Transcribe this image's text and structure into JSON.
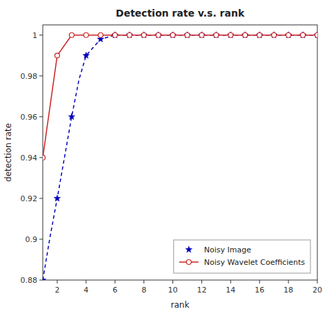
{
  "chart_data": {
    "type": "line",
    "title": "Detection rate v.s. rank",
    "x_label": "rank",
    "y_label": "detection rate",
    "xlim": [
      1,
      20
    ],
    "ylim": [
      0.88,
      1.005
    ],
    "xticks": [
      2,
      4,
      6,
      8,
      10,
      12,
      14,
      16,
      18,
      20
    ],
    "yticks": [
      0.88,
      0.9,
      0.92,
      0.94,
      0.96,
      0.98,
      1
    ],
    "grid": false,
    "legend": "lower right",
    "series": [
      {
        "color": "#0000bb",
        "line_style": "dashed",
        "marker": "none",
        "x": [
          1,
          1.5,
          2,
          2.5,
          3,
          3.5,
          4,
          5,
          6,
          7,
          8,
          9,
          10,
          11,
          12,
          13,
          14,
          15,
          16,
          17,
          18,
          19,
          20
        ],
        "values": [
          0.88,
          0.901,
          0.92,
          0.94,
          0.96,
          0.978,
          0.99,
          0.998,
          1.0,
          1.0,
          1.0,
          1.0,
          1.0,
          1.0,
          1.0,
          1.0,
          1.0,
          1.0,
          1.0,
          1.0,
          1.0,
          1.0,
          1.0
        ]
      },
      {
        "name": "Noisy Image",
        "color": "#0000bb",
        "line_style": "none",
        "marker": "star",
        "x": [
          1,
          2,
          3,
          4,
          5,
          6,
          7,
          8,
          9,
          10,
          11,
          12,
          13,
          14,
          15,
          16,
          17,
          18,
          19,
          20
        ],
        "values": [
          0.88,
          0.92,
          0.96,
          0.99,
          0.998,
          1.0,
          1.0,
          1.0,
          1.0,
          1.0,
          1.0,
          1.0,
          1.0,
          1.0,
          1.0,
          1.0,
          1.0,
          1.0,
          1.0,
          1.0
        ]
      },
      {
        "name": "Noisy Wavelet Coefficients",
        "color": "#cc2222",
        "line_style": "solid",
        "marker": "circle",
        "x": [
          1,
          2,
          3,
          4,
          5,
          6,
          7,
          8,
          9,
          10,
          11,
          12,
          13,
          14,
          15,
          16,
          17,
          18,
          19,
          20
        ],
        "values": [
          0.94,
          0.99,
          1.0,
          1.0,
          1.0,
          1.0,
          1.0,
          1.0,
          1.0,
          1.0,
          1.0,
          1.0,
          1.0,
          1.0,
          1.0,
          1.0,
          1.0,
          1.0,
          1.0,
          1.0
        ]
      }
    ]
  }
}
